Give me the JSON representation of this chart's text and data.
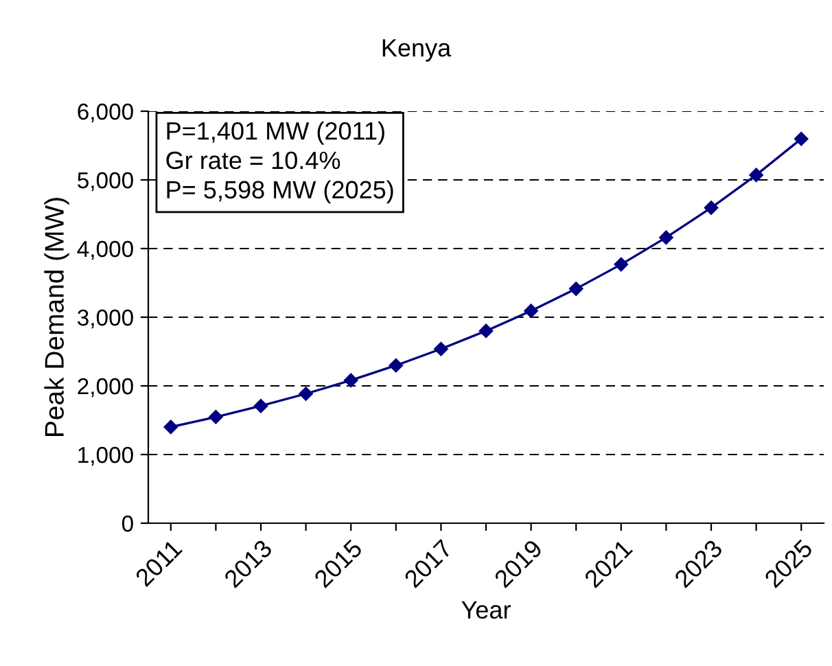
{
  "chart_data": {
    "type": "line",
    "title": "Kenya",
    "xlabel": "Year",
    "ylabel": "Peak Demand (MW)",
    "categories": [
      "2011",
      null,
      "2013",
      null,
      "2015",
      null,
      "2017",
      null,
      "2019",
      null,
      "2021",
      null,
      "2023",
      null,
      "2025"
    ],
    "series": [
      {
        "color": "#000080",
        "values": [
          1401,
          1547,
          1708,
          1885,
          2081,
          2298,
          2537,
          2801,
          3092,
          3414,
          3769,
          4161,
          4594,
          5071,
          5598
        ]
      }
    ],
    "ylim": [
      0,
      6000
    ],
    "yticks": [
      {
        "value": 0,
        "label": "0"
      },
      {
        "value": 1000,
        "label": "1,000"
      },
      {
        "value": 2000,
        "label": "2,000"
      },
      {
        "value": 3000,
        "label": "3,000"
      },
      {
        "value": 4000,
        "label": "4,000"
      },
      {
        "value": 5000,
        "label": "5,000"
      },
      {
        "value": 6000,
        "label": "6,000"
      }
    ],
    "grid": "y",
    "marker": "diamond",
    "line_style": "solid",
    "annotations": [
      "P=1,401 MW (2011)",
      "Gr rate = 10.4%",
      "P= 5,598 MW (2025)"
    ]
  }
}
